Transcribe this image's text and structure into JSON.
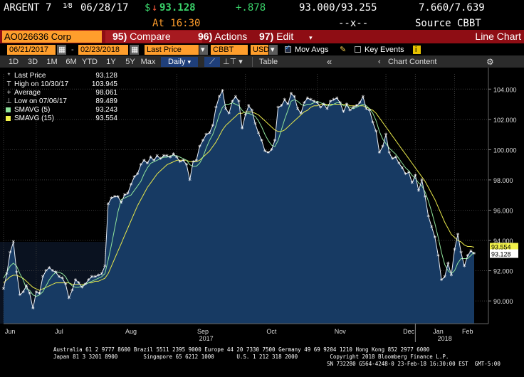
{
  "header": {
    "ticker": "ARGENT 7",
    "coupon_frac": "1⁄8",
    "maturity": "06/28/17",
    "price_prefix": "$",
    "price_arrow": "↓",
    "price": "93.128",
    "change": "+.878",
    "bid_ask": "93.000/93.255",
    "yields": "7.660/7.639",
    "time": "At 16:30",
    "dashes": "--x--",
    "source": "Source CBBT"
  },
  "menubar": {
    "security": "AO026636 Corp",
    "compare_num": "95)",
    "compare_label": "Compare",
    "actions_num": "96)",
    "actions_label": "Actions",
    "edit_num": "97)",
    "edit_label": "Edit",
    "title": "Line Chart"
  },
  "settings": {
    "start_date": "06/21/2017",
    "end_date": "02/23/2018",
    "field": "Last Price",
    "source": "CBBT",
    "currency": "USD",
    "mov_avgs_label": "Mov Avgs",
    "key_events_label": "Key Events",
    "info_badge": "i"
  },
  "range": {
    "buttons": [
      "1D",
      "3D",
      "1M",
      "6M",
      "YTD",
      "1Y",
      "5Y",
      "Max"
    ],
    "period": "Daily",
    "table_label": "Table",
    "chart_content_label": "Chart Content",
    "collapse_glyph": "«",
    "gear_glyph": "⚙"
  },
  "legend": [
    {
      "marker": "*",
      "label": "Last Price",
      "value": "93.128"
    },
    {
      "marker": "T",
      "label": "High on 10/30/17",
      "value": "103.945"
    },
    {
      "marker": "+",
      "label": "Average",
      "value": "98.061"
    },
    {
      "marker": "⊥",
      "label": "Low on 07/06/17",
      "value": "89.489"
    },
    {
      "marker": "",
      "label": "SMAVG (5)",
      "value": "93.243",
      "color": "#8fe39c"
    },
    {
      "marker": "",
      "label": "SMAVG (15)",
      "value": "93.554",
      "color": "#f2f24a"
    }
  ],
  "last_price_label": "93.128",
  "sma15_label": "93.554",
  "chart_data": {
    "type": "line",
    "title": "",
    "ylim": [
      88.5,
      105
    ],
    "yticks": [
      90,
      92,
      94,
      96,
      98,
      100,
      102,
      104
    ],
    "ytick_labels": [
      "90.000",
      "92.000",
      "94.000",
      "96.000",
      "98.000",
      "100.000",
      "102.000",
      "104.000"
    ],
    "months": [
      "Jun",
      "Jul",
      "Aug",
      "Sep",
      "Oct",
      "Nov",
      "Dec",
      "Jan",
      "Feb"
    ],
    "years": [
      "2017",
      "2018"
    ],
    "colors": {
      "price": "#e9eef6",
      "sma5": "#8fe39c",
      "sma15": "#e8e84a",
      "area": "#173a63",
      "grid": "#3a3a3a"
    },
    "series": [
      {
        "name": "Last Price",
        "values": [
          90.8,
          91.8,
          93.2,
          93.9,
          91.9,
          90.4,
          90.6,
          91.0,
          90.5,
          89.5,
          90.6,
          90.5,
          91.6,
          92.0,
          92.2,
          92.0,
          91.9,
          91.6,
          91.5,
          91.1,
          90.2,
          90.7,
          91.4,
          91.2,
          90.9,
          91.1,
          91.4,
          91.6,
          91.6,
          91.7,
          91.8,
          92.3,
          96.4,
          96.8,
          96.9,
          96.9,
          96.5,
          97.0,
          97.1,
          97.7,
          98.2,
          98.4,
          99.0,
          99.3,
          99.1,
          99.5,
          99.3,
          99.6,
          99.4,
          99.6,
          99.6,
          99.5,
          99.7,
          99.5,
          99.2,
          99.3,
          99.0,
          98.0,
          99.2,
          99.3,
          100.2,
          100.6,
          101.0,
          101.1,
          101.6,
          102.8,
          103.5,
          103.9,
          102.7,
          102.4,
          103.2,
          103.5,
          103.2,
          101.4,
          102.3,
          102.9,
          102.6,
          101.7,
          101.1,
          100.6,
          99.9,
          99.8,
          100.0,
          100.6,
          102.8,
          102.9,
          103.3,
          103.0,
          103.7,
          103.5,
          102.7,
          102.4,
          103.1,
          103.4,
          103.3,
          103.2,
          103.1,
          102.8,
          103.0,
          102.7,
          103.2,
          103.3,
          103.4,
          103.1,
          102.5,
          103.0,
          102.6,
          102.8,
          102.9,
          103.1,
          103.5,
          102.7,
          102.6,
          101.8,
          101.2,
          99.8,
          100.2,
          101.0,
          99.8,
          99.4,
          99.5,
          99.1,
          98.8,
          98.4,
          98.5,
          97.8,
          98.3,
          97.3,
          98.0,
          96.9,
          95.6,
          94.9,
          94.2,
          93.0,
          91.4,
          91.6,
          92.5,
          91.7,
          93.4,
          94.4,
          93.2,
          92.3,
          93.0,
          93.3,
          93.128
        ]
      },
      {
        "name": "SMAVG (5)",
        "values": [
          91.5,
          91.9,
          92.3,
          92.5,
          92.3,
          91.8,
          91.4,
          90.8,
          90.7,
          90.4,
          90.3,
          90.4,
          90.6,
          91.0,
          91.4,
          91.7,
          91.9,
          91.9,
          91.8,
          91.6,
          91.2,
          91.0,
          90.9,
          90.9,
          91.0,
          91.1,
          91.2,
          91.3,
          91.4,
          91.5,
          91.6,
          91.8,
          92.7,
          93.7,
          94.8,
          95.9,
          96.7,
          96.8,
          96.9,
          97.0,
          97.3,
          97.6,
          97.9,
          98.4,
          98.8,
          99.1,
          99.2,
          99.3,
          99.4,
          99.5,
          99.5,
          99.6,
          99.6,
          99.6,
          99.5,
          99.4,
          99.3,
          99.0,
          98.9,
          98.9,
          99.1,
          99.5,
          100.1,
          100.6,
          101.0,
          101.6,
          102.3,
          102.8,
          103.0,
          103.0,
          103.1,
          103.0,
          102.9,
          102.6,
          102.4,
          102.4,
          102.3,
          102.2,
          101.9,
          101.5,
          101.0,
          100.6,
          100.3,
          100.2,
          100.6,
          101.3,
          102.0,
          102.6,
          103.2,
          103.3,
          103.2,
          103.0,
          102.9,
          103.0,
          103.0,
          103.1,
          103.2,
          103.1,
          103.0,
          102.9,
          102.9,
          103.0,
          103.1,
          103.1,
          102.9,
          102.9,
          102.8,
          102.7,
          102.8,
          102.9,
          103.0,
          102.9,
          102.7,
          102.4,
          101.9,
          101.2,
          100.7,
          100.4,
          100.1,
          99.9,
          99.7,
          99.4,
          99.1,
          98.8,
          98.6,
          98.3,
          98.1,
          97.8,
          97.6,
          97.2,
          96.6,
          95.9,
          95.1,
          94.2,
          93.2,
          92.4,
          92.0,
          91.8,
          92.0,
          92.5,
          92.8,
          92.8,
          92.8,
          93.0,
          93.243
        ]
      },
      {
        "name": "SMAVG (15)",
        "values": [
          91.2,
          91.4,
          91.6,
          91.7,
          91.7,
          91.6,
          91.5,
          91.3,
          91.1,
          90.9,
          90.8,
          90.7,
          90.8,
          90.9,
          91.0,
          91.1,
          91.2,
          91.2,
          91.2,
          91.2,
          91.2,
          91.1,
          91.1,
          91.1,
          91.1,
          91.1,
          91.2,
          91.2,
          91.3,
          91.3,
          91.4,
          91.5,
          91.8,
          92.3,
          92.8,
          93.3,
          93.8,
          94.3,
          94.8,
          95.3,
          95.8,
          96.3,
          96.7,
          97.1,
          97.5,
          97.8,
          98.1,
          98.4,
          98.6,
          98.8,
          99.0,
          99.1,
          99.2,
          99.3,
          99.3,
          99.3,
          99.3,
          99.2,
          99.2,
          99.2,
          99.3,
          99.5,
          99.7,
          99.9,
          100.2,
          100.5,
          100.9,
          101.3,
          101.6,
          101.8,
          102.0,
          102.2,
          102.4,
          102.4,
          102.5,
          102.5,
          102.5,
          102.4,
          102.3,
          102.1,
          101.9,
          101.7,
          101.5,
          101.3,
          101.2,
          101.2,
          101.3,
          101.5,
          101.7,
          101.9,
          102.1,
          102.3,
          102.5,
          102.6,
          102.8,
          102.9,
          102.9,
          103.0,
          103.0,
          103.0,
          103.0,
          103.0,
          103.0,
          103.0,
          103.0,
          103.0,
          102.9,
          102.9,
          102.9,
          102.9,
          102.9,
          102.8,
          102.7,
          102.6,
          102.4,
          102.1,
          101.8,
          101.5,
          101.2,
          100.9,
          100.6,
          100.3,
          100.0,
          99.7,
          99.4,
          99.1,
          98.8,
          98.5,
          98.2,
          97.9,
          97.5,
          97.1,
          96.7,
          96.2,
          95.7,
          95.2,
          94.8,
          94.4,
          94.2,
          94.0,
          93.9,
          93.7,
          93.6,
          93.6,
          93.554
        ]
      }
    ],
    "average": 98.061,
    "high": {
      "date": "10/30/17",
      "value": 103.945
    },
    "low": {
      "date": "07/06/17",
      "value": 89.489
    }
  },
  "footer": {
    "line1": "Australia 61 2 9777 8600 Brazil 5511 2395 9000 Europe 44 20 7330 7500 Germany 49 69 9204 1210 Hong Kong 852 2977 6000",
    "line2": "Japan 81 3 3201 8900        Singapore 65 6212 1000       U.S. 1 212 318 2000          Copyright 2018 Bloomberg Finance L.P.",
    "line3": "SN 732280 G564-4248-0 23-Feb-18 16:30:00 EST  GMT-5:00"
  }
}
